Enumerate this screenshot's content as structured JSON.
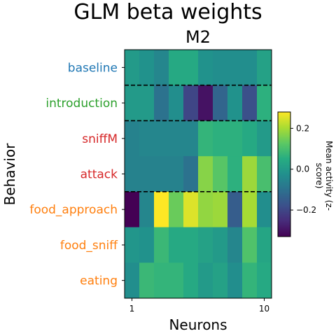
{
  "figure": {
    "suptitle": "GLM beta weights",
    "axes_title": "M2",
    "xlabel": "Neurons",
    "ylabel": "Behavior",
    "colorbar_label": "Mean activity (z-score)"
  },
  "chart_data": {
    "type": "heatmap",
    "title": "M2",
    "xlabel": "Neurons",
    "ylabel": "Behavior",
    "colormap": "viridis",
    "vmin": -0.33,
    "vmax": 0.28,
    "x_tick_labels": [
      "1",
      "10"
    ],
    "x_tick_positions": [
      1,
      10
    ],
    "rows": [
      {
        "label": "baseline",
        "color": "#1f77b4",
        "values": [
          0.0,
          -0.02,
          -0.05,
          0.04,
          0.04,
          -0.02,
          -0.03,
          -0.03,
          -0.03,
          0.02
        ]
      },
      {
        "label": "introduction",
        "color": "#2ca02c",
        "values": [
          0.0,
          0.0,
          -0.1,
          -0.03,
          -0.2,
          -0.3,
          -0.13,
          -0.02,
          -0.18,
          0.06
        ]
      },
      {
        "label": "sniffM",
        "color": "#d62728",
        "values": [
          -0.06,
          -0.05,
          -0.05,
          -0.05,
          -0.05,
          0.07,
          0.06,
          0.06,
          0.04,
          0.0
        ]
      },
      {
        "label": "attack",
        "color": "#d62728",
        "values": [
          -0.06,
          -0.06,
          -0.06,
          -0.06,
          -0.1,
          0.17,
          0.12,
          0.06,
          0.19,
          0.1
        ]
      },
      {
        "label": "food_approach",
        "color": "#ff7f0e",
        "values": [
          -0.33,
          -0.05,
          0.28,
          0.14,
          0.25,
          0.18,
          0.19,
          -0.15,
          0.2,
          -0.03
        ]
      },
      {
        "label": "food_sniff",
        "color": "#ff7f0e",
        "values": [
          -0.01,
          -0.02,
          0.08,
          0.04,
          0.04,
          0.02,
          0.0,
          -0.05,
          0.11,
          0.03
        ]
      },
      {
        "label": "eating",
        "color": "#ff7f0e",
        "values": [
          -0.03,
          0.08,
          0.07,
          0.07,
          0.04,
          0.0,
          0.02,
          -0.03,
          0.07,
          0.04
        ]
      }
    ],
    "row_separators_after": [
      "baseline",
      "introduction",
      "attack"
    ],
    "colorbar_ticks": [
      {
        "value": 0.2,
        "label": "0.2"
      },
      {
        "value": 0.0,
        "label": "0.0"
      },
      {
        "value": -0.2,
        "label": "−0.2"
      }
    ]
  }
}
